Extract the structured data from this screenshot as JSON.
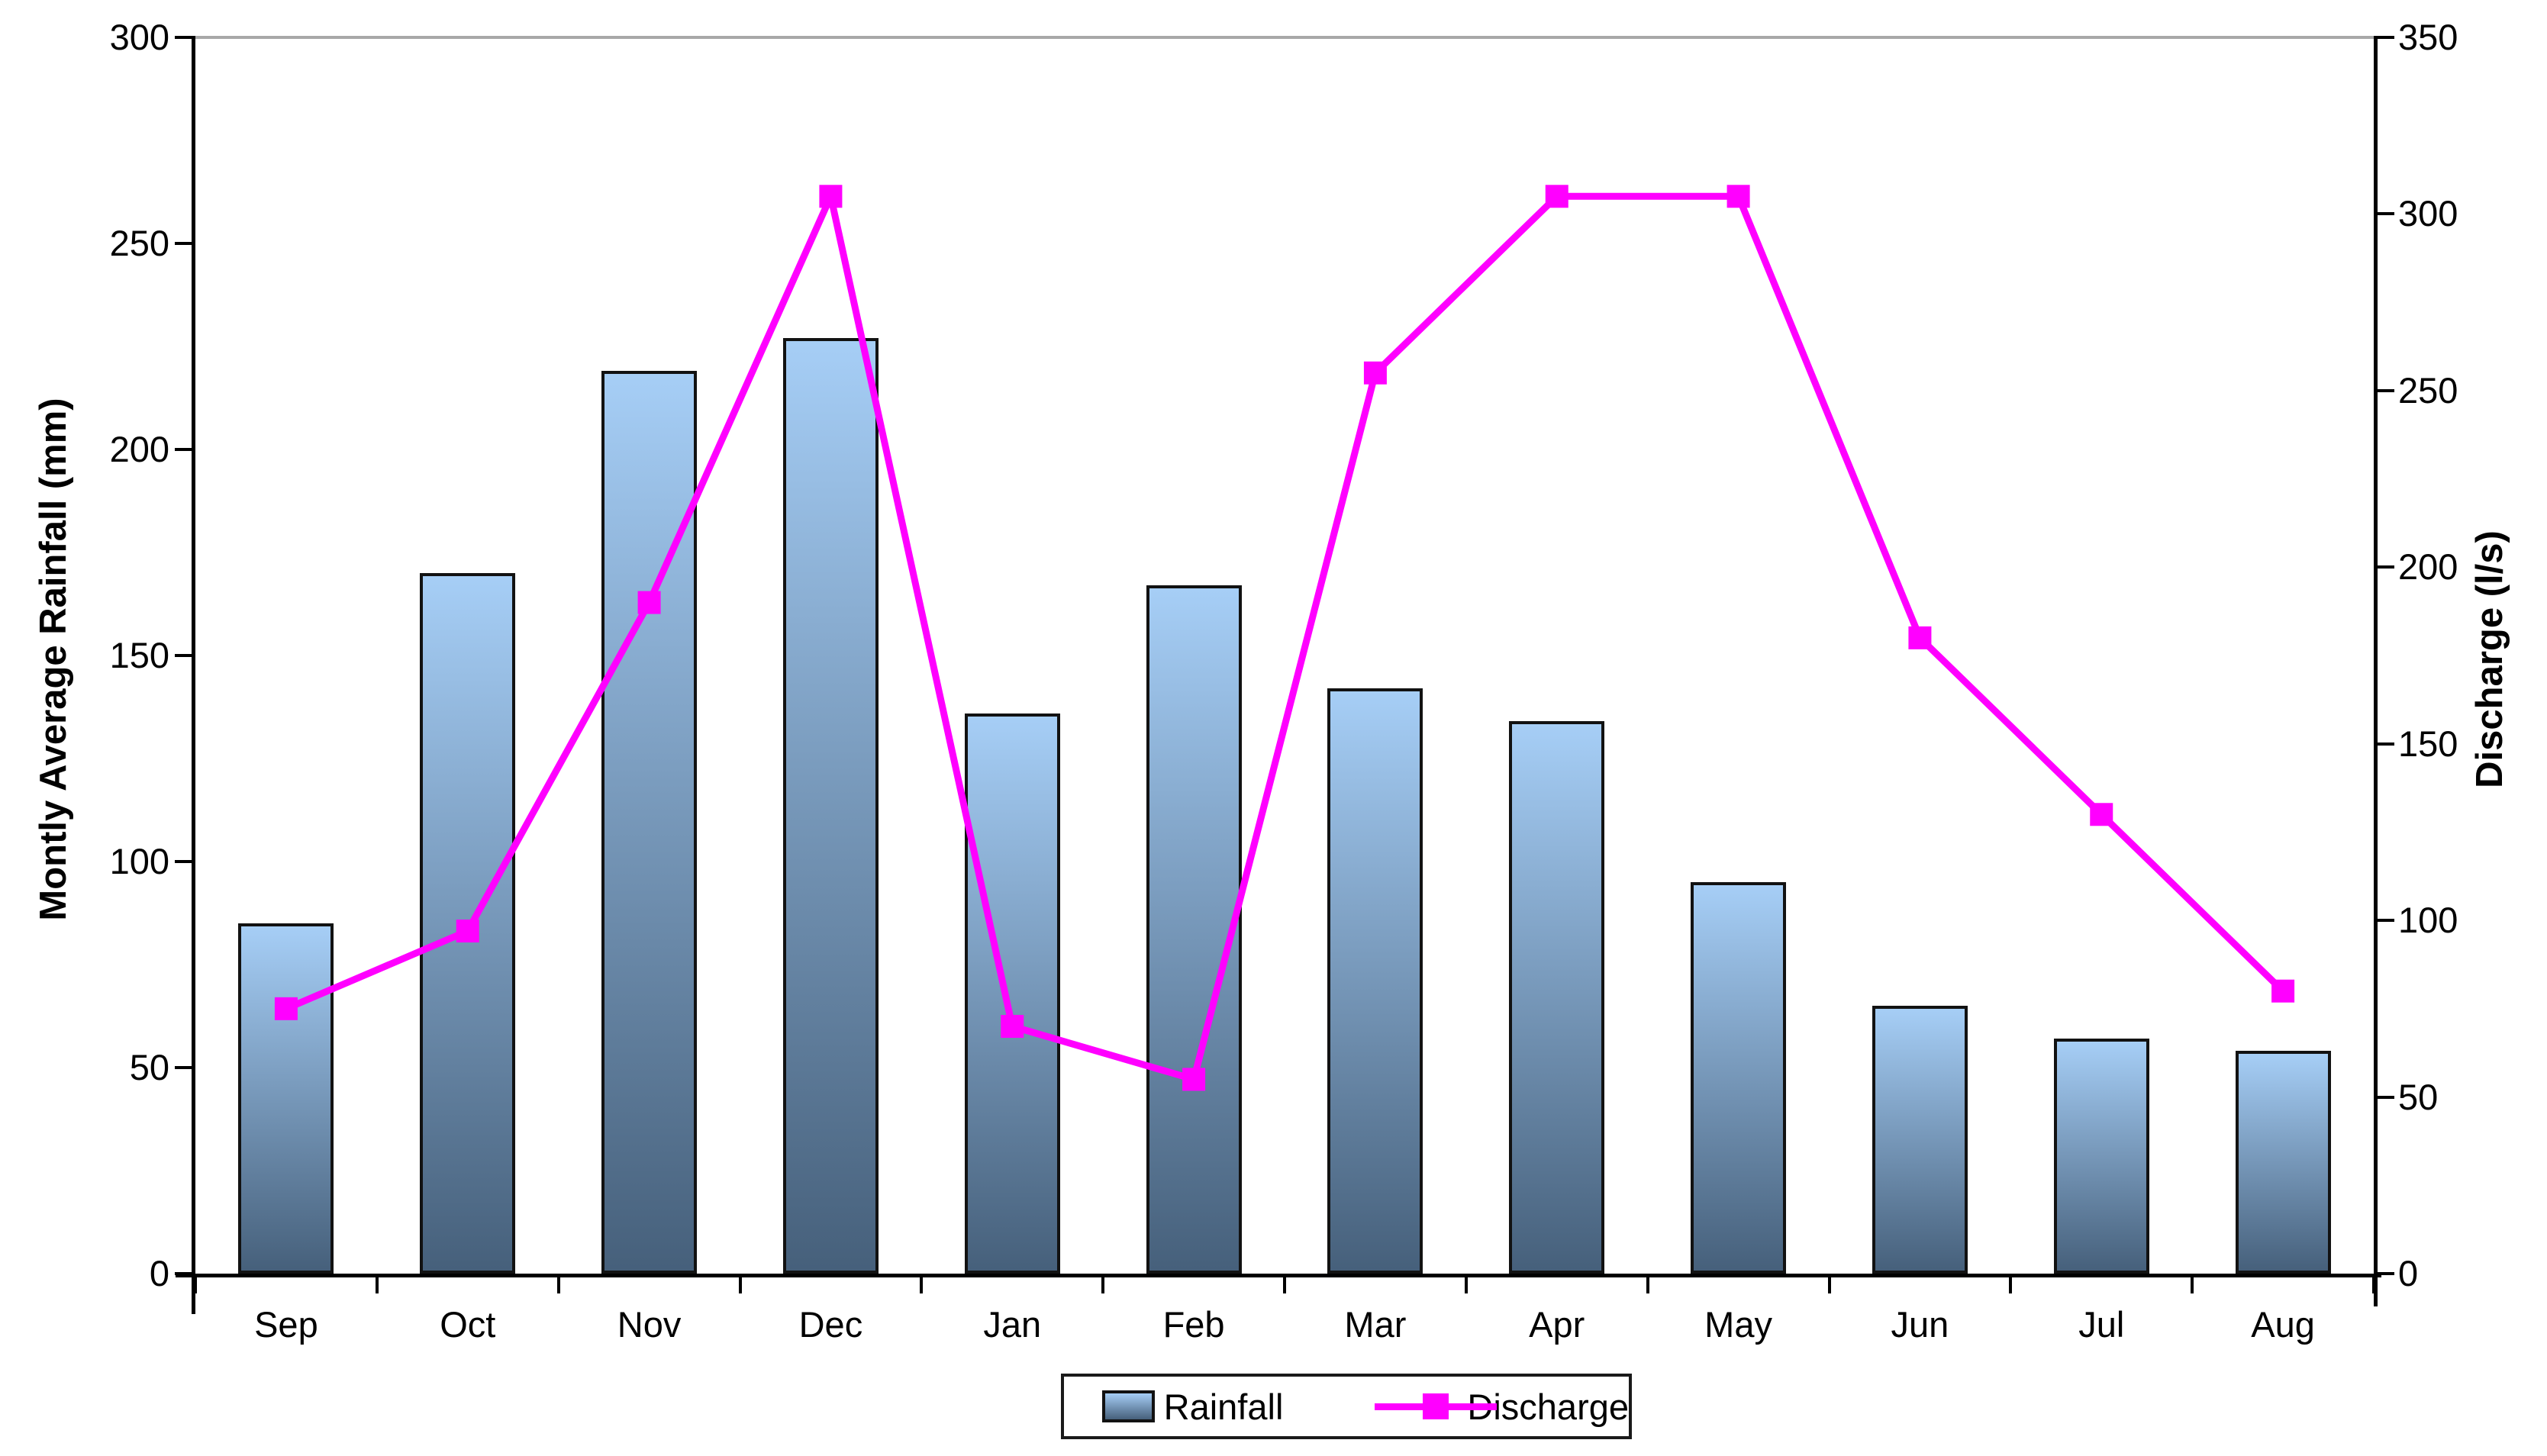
{
  "chart_data": {
    "type": "combo-bar-line",
    "title": "",
    "categories": [
      "Sep",
      "Oct",
      "Nov",
      "Dec",
      "Jan",
      "Feb",
      "Mar",
      "Apr",
      "May",
      "Jun",
      "Jul",
      "Aug"
    ],
    "series": [
      {
        "name": "Rainfall",
        "type": "bar",
        "axis": "left",
        "values": [
          85,
          170,
          219,
          227,
          136,
          167,
          142,
          134,
          95,
          65,
          57,
          54
        ]
      },
      {
        "name": "Discharge",
        "type": "line",
        "axis": "right",
        "values": [
          75,
          97,
          190,
          305,
          70,
          55,
          255,
          305,
          305,
          180,
          130,
          80
        ]
      }
    ],
    "left_axis": {
      "title": "Montly Average Rainfall (mm)",
      "min": 0,
      "max": 300,
      "step": 50,
      "tick_labels": [
        "0",
        "50",
        "100",
        "150",
        "200",
        "250",
        "300"
      ]
    },
    "right_axis": {
      "title": "Discharge (l/s)",
      "min": 0,
      "max": 350,
      "step": 50,
      "tick_labels": [
        "0",
        "50",
        "100",
        "150",
        "200",
        "250",
        "300",
        "350"
      ]
    },
    "legend": {
      "position": "bottom",
      "items": [
        "Rainfall",
        "Discharge"
      ]
    },
    "colors": {
      "bar_gradient_top": "#A6CEF6",
      "bar_gradient_bottom": "#46607B",
      "bar_border": "#121212",
      "line": "#FF00FF",
      "axis": "#000000",
      "plot_top_border": "#A8A8A8",
      "background": "#FFFFFF"
    },
    "grid": false
  }
}
